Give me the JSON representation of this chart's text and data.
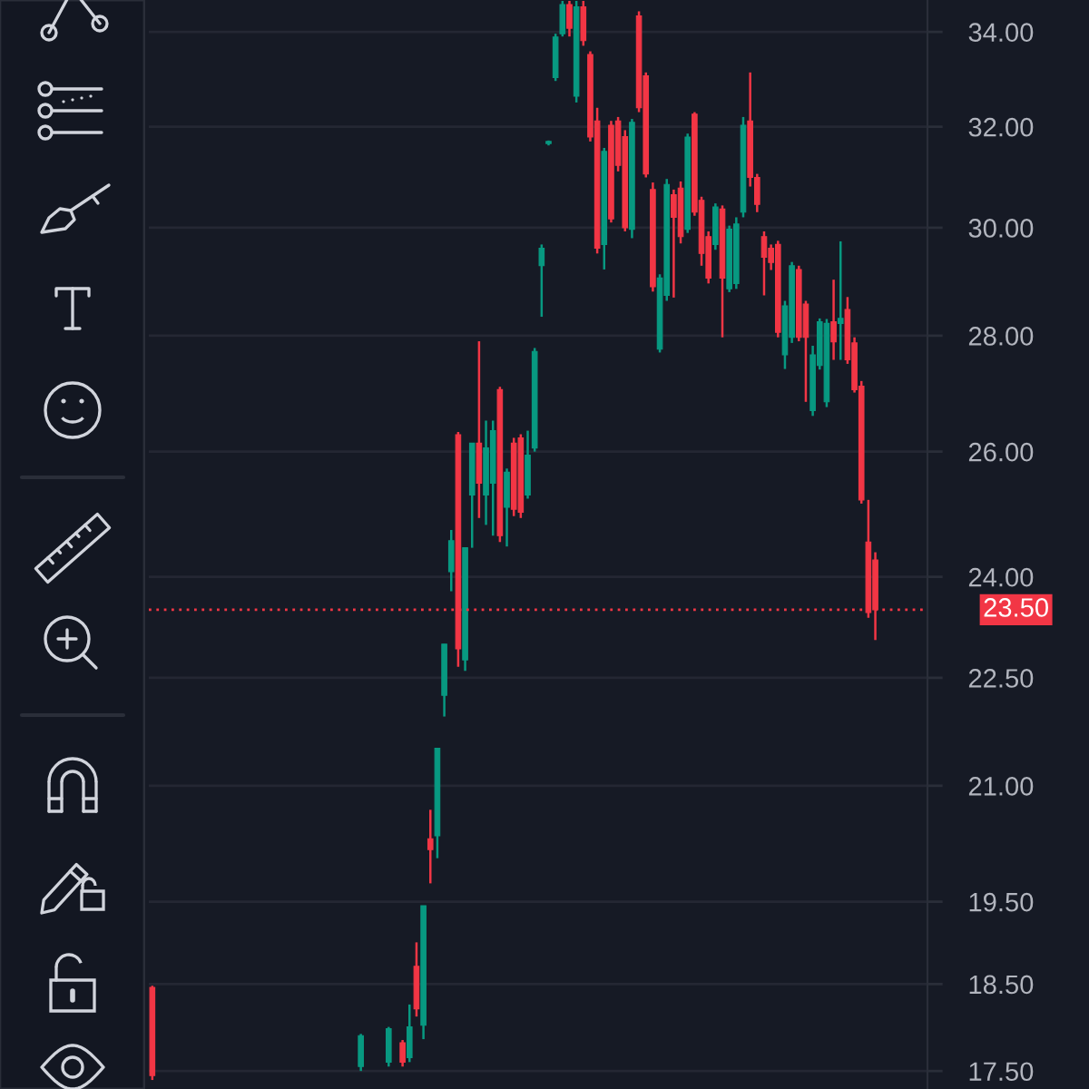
{
  "chart_data": {
    "type": "candlestick",
    "log": true,
    "grid": "y",
    "tick_labels": "y",
    "ylim": [
      17.3,
      34.7
    ],
    "yticks": [
      {
        "value": 17.5,
        "label": "17.50"
      },
      {
        "value": 18.5,
        "label": "18.50"
      },
      {
        "value": 19.5,
        "label": "19.50"
      },
      {
        "value": 21,
        "label": "21.00"
      },
      {
        "value": 22.5,
        "label": "22.50"
      },
      {
        "value": 24,
        "label": "24.00"
      },
      {
        "value": 26,
        "label": "26.00"
      },
      {
        "value": 28,
        "label": "28.00"
      },
      {
        "value": 30,
        "label": "30.00"
      },
      {
        "value": 32,
        "label": "32.00"
      },
      {
        "value": 34,
        "label": "34.00"
      }
    ],
    "ref_lines": [
      {
        "axis": "y",
        "value": 23.5,
        "label": "23.50",
        "color": "#f23645",
        "line_style": "dotted"
      }
    ],
    "categories": [
      null,
      null,
      null,
      null,
      null,
      null,
      null,
      null,
      null,
      null,
      null,
      null,
      null,
      null,
      null,
      null,
      null,
      null,
      null,
      null,
      null,
      null,
      null,
      null,
      null,
      null,
      null,
      null,
      null,
      null,
      null,
      null,
      null,
      null,
      null,
      null,
      null,
      null,
      null,
      null,
      null,
      null,
      null,
      null,
      null,
      null,
      null,
      null,
      null,
      null,
      null,
      null,
      null,
      null,
      null,
      null,
      null,
      null,
      null,
      null,
      null,
      null,
      null,
      null,
      null,
      null,
      null,
      null,
      null,
      null,
      null,
      null,
      null,
      null,
      null,
      null,
      null,
      null,
      null,
      null,
      null,
      null,
      null,
      null,
      null,
      null,
      null,
      null,
      null,
      null,
      null,
      null,
      null,
      null,
      null,
      null,
      null,
      null,
      null,
      null,
      null,
      null,
      null,
      null,
      null,
      null,
      null,
      null,
      null,
      null,
      null,
      null
    ],
    "ohlc": [
      [
        18.46,
        18.48,
        17.4,
        17.45
      ],
      null,
      null,
      null,
      null,
      null,
      null,
      null,
      null,
      null,
      null,
      null,
      null,
      null,
      null,
      null,
      null,
      null,
      null,
      null,
      null,
      null,
      null,
      null,
      null,
      null,
      null,
      null,
      null,
      null,
      [
        17.55,
        17.92,
        17.5,
        17.9
      ],
      null,
      null,
      null,
      [
        17.6,
        18.0,
        17.55,
        17.98
      ],
      null,
      [
        17.82,
        17.85,
        17.55,
        17.6
      ],
      [
        17.65,
        18.26,
        17.6,
        18.0
      ],
      [
        18.71,
        19.0,
        18.12,
        18.21
      ],
      [
        18.02,
        19.45,
        17.86,
        19.45
      ],
      [
        20.3,
        20.68,
        19.73,
        20.16
      ],
      [
        20.34,
        21.51,
        20.05,
        21.51
      ],
      [
        22.25,
        22.99,
        21.95,
        22.99
      ],
      [
        24.08,
        24.73,
        23.78,
        24.56
      ],
      [
        26.28,
        26.33,
        22.66,
        22.92
      ],
      [
        22.76,
        24.45,
        22.6,
        24.45
      ],
      [
        25.29,
        26.14,
        24.45,
        26.14
      ],
      [
        26.14,
        27.9,
        24.92,
        25.48
      ],
      [
        25.29,
        26.52,
        24.81,
        26.06
      ],
      [
        25.48,
        26.52,
        24.64,
        26.35
      ],
      [
        27.05,
        27.1,
        24.54,
        24.64
      ],
      [
        25.09,
        25.72,
        24.47,
        25.66
      ],
      [
        26.14,
        26.23,
        24.95,
        25.06
      ],
      [
        26.23,
        26.29,
        24.92,
        25.01
      ],
      [
        25.29,
        26.35,
        25.23,
        25.94
      ],
      [
        26.06,
        27.78,
        26.0,
        27.72
      ],
      [
        29.28,
        29.68,
        28.34,
        29.61
      ],
      [
        31.66,
        31.72,
        31.62,
        31.7
      ],
      [
        33.02,
        33.96,
        32.95,
        33.89
      ],
      [
        33.96,
        34.68,
        33.9,
        34.6
      ],
      [
        34.6,
        34.68,
        33.9,
        34.08
      ],
      [
        32.63,
        34.68,
        32.5,
        34.55
      ],
      [
        34.55,
        34.68,
        33.7,
        33.81
      ],
      [
        33.51,
        33.58,
        31.7,
        31.79
      ],
      [
        32.12,
        32.39,
        29.51,
        29.61
      ],
      [
        29.68,
        31.57,
        29.21,
        31.5
      ],
      [
        32.03,
        32.12,
        30.1,
        30.17
      ],
      [
        32.12,
        32.2,
        31.1,
        31.22
      ],
      [
        31.8,
        31.93,
        29.93,
        30.0
      ],
      [
        29.97,
        32.16,
        29.8,
        32.09
      ],
      [
        34.35,
        34.45,
        32.3,
        32.39
      ],
      [
        33.06,
        33.13,
        30.98,
        31.05
      ],
      [
        30.74,
        30.88,
        28.8,
        28.89
      ],
      [
        27.76,
        29.12,
        27.7,
        29.05
      ],
      [
        28.73,
        30.95,
        28.63,
        30.84
      ],
      [
        30.64,
        30.74,
        28.69,
        30.2
      ],
      [
        30.77,
        30.9,
        29.7,
        29.83
      ],
      [
        29.97,
        31.86,
        29.9,
        31.79
      ],
      [
        32.26,
        32.3,
        30.23,
        30.3
      ],
      [
        30.53,
        30.6,
        29.28,
        29.51
      ],
      [
        29.83,
        29.93,
        28.95,
        29.05
      ],
      [
        29.68,
        30.47,
        29.58,
        30.4
      ],
      [
        30.36,
        30.43,
        27.97,
        29.05
      ],
      [
        28.85,
        30.04,
        28.79,
        29.97
      ],
      [
        28.95,
        30.2,
        28.85,
        30.07
      ],
      [
        30.3,
        32.2,
        30.2,
        32.03
      ],
      [
        32.12,
        33.13,
        30.8,
        30.98
      ],
      [
        30.98,
        31.05,
        30.3,
        30.45
      ],
      [
        29.83,
        29.93,
        28.73,
        29.44
      ],
      [
        29.61,
        29.68,
        29.2,
        29.34
      ],
      [
        29.68,
        29.75,
        27.97,
        28.06
      ],
      [
        27.66,
        28.63,
        27.41,
        28.54
      ],
      [
        27.97,
        29.35,
        27.87,
        29.28
      ],
      [
        29.21,
        29.28,
        27.9,
        27.97
      ],
      [
        28.57,
        28.63,
        26.84,
        27.97
      ],
      [
        26.69,
        27.82,
        26.6,
        27.66
      ],
      [
        27.47,
        28.31,
        27.4,
        28.25
      ],
      [
        26.84,
        28.3,
        26.75,
        28.22
      ],
      [
        28.25,
        29.02,
        27.57,
        27.89
      ],
      [
        28.22,
        29.74,
        27.57,
        28.31
      ],
      [
        28.47,
        28.7,
        27.5,
        27.57
      ],
      [
        27.87,
        27.97,
        27.0,
        27.05
      ],
      [
        27.11,
        27.2,
        25.15,
        25.21
      ],
      [
        24.54,
        25.21,
        23.38,
        23.46
      ],
      [
        24.26,
        24.38,
        23.05,
        23.5
      ],
      null,
      null,
      null,
      null,
      null,
      null,
      null
    ],
    "colors": [
      "#f23645",
      null,
      null,
      null,
      null,
      null,
      null,
      null,
      null,
      null,
      null,
      null,
      null,
      null,
      null,
      null,
      null,
      null,
      null,
      null,
      null,
      null,
      null,
      null,
      null,
      null,
      null,
      null,
      null,
      null,
      "#089981",
      null,
      null,
      null,
      "#089981",
      null,
      "#f23645",
      "#089981",
      "#f23645",
      "#089981",
      "#f23645",
      "#089981",
      "#089981",
      "#089981",
      "#f23645",
      "#089981",
      "#089981",
      "#f23645",
      "#089981",
      "#089981",
      "#f23645",
      "#089981",
      "#f23645",
      "#f23645",
      "#089981",
      "#089981",
      "#089981",
      "#089981",
      "#089981",
      "#089981",
      "#f23645",
      "#089981",
      "#f23645",
      "#f23645",
      "#f23645",
      "#089981",
      "#f23645",
      "#f23645",
      "#f23645",
      "#089981",
      "#f23645",
      "#f23645",
      "#f23645",
      "#089981",
      "#089981",
      "#f23645",
      "#f23645",
      "#089981",
      "#f23645",
      "#f23645",
      "#f23645",
      "#089981",
      "#f23645",
      "#089981",
      "#089981",
      "#089981",
      "#f23645",
      "#f23645",
      "#f23645",
      "#f23645",
      "#f23645",
      "#089981",
      "#089981",
      "#f23645",
      "#f23645",
      "#089981",
      "#089981",
      "#089981",
      "#f23645",
      "#089981",
      "#f23645",
      "#f23645",
      "#f23645",
      "#f23645",
      "#f23645",
      null,
      null,
      null,
      null,
      null,
      null,
      null
    ]
  }
}
